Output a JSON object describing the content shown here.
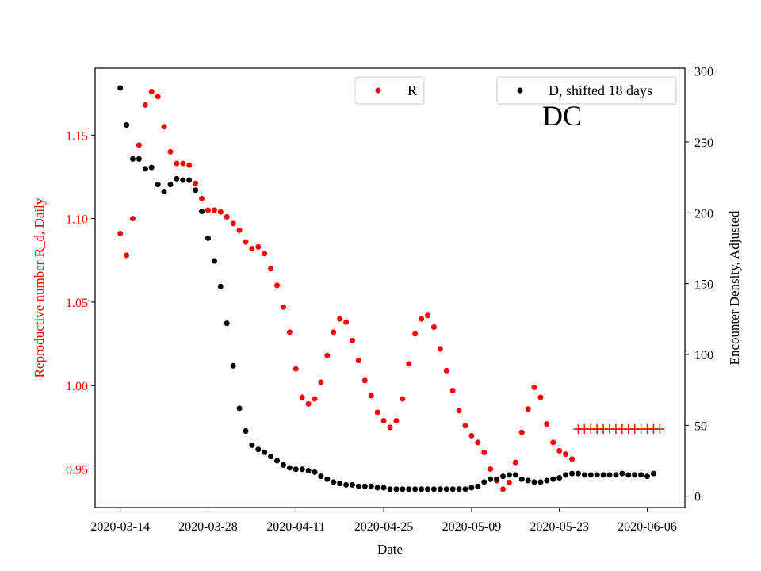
{
  "chart_data": {
    "type": "scatter",
    "annotation": "DC",
    "xlabel": "Date",
    "ylabel_left": "Reproductive number R_d, Daily",
    "ylabel_right": "Encounter Density, Adjusted",
    "x_ticks": [
      "2020-03-14",
      "2020-03-28",
      "2020-04-11",
      "2020-04-25",
      "2020-05-09",
      "2020-05-23",
      "2020-06-06"
    ],
    "y_left_ticks": [
      "0.95",
      "1.00",
      "1.05",
      "1.10",
      "1.15"
    ],
    "y_right_ticks": [
      "0",
      "50",
      "100",
      "150",
      "200",
      "250",
      "300"
    ],
    "x_start": "2020-03-14",
    "x_end": "2020-06-06",
    "xlim": [
      "2020-03-10",
      "2020-06-12"
    ],
    "ylim_left": [
      0.927,
      1.19
    ],
    "ylim_right": [
      -8,
      302
    ],
    "legend_left": {
      "label": "R",
      "color": "#ff0000"
    },
    "legend_right": {
      "label": "D, shifted 18 days",
      "color": "#000000"
    },
    "colors": {
      "r": "#ff0000",
      "d": "#000000",
      "left_axis": "#ff0000"
    },
    "series_r": [
      1.091,
      1.078,
      1.1,
      1.144,
      1.168,
      1.176,
      1.173,
      1.155,
      1.14,
      1.133,
      1.133,
      1.132,
      1.121,
      1.112,
      1.105,
      1.105,
      1.104,
      1.101,
      1.097,
      1.093,
      1.086,
      1.082,
      1.083,
      1.079,
      1.07,
      1.06,
      1.047,
      1.032,
      1.01,
      0.993,
      0.989,
      0.992,
      1.002,
      1.018,
      1.032,
      1.04,
      1.038,
      1.027,
      1.015,
      1.003,
      0.994,
      0.984,
      0.979,
      0.975,
      0.979,
      0.992,
      1.013,
      1.031,
      1.04,
      1.042,
      1.035,
      1.022,
      1.009,
      0.997,
      0.985,
      0.976,
      0.97,
      0.966,
      0.96,
      0.95,
      0.943,
      0.938,
      0.942,
      0.954,
      0.972,
      0.986,
      0.999,
      0.993,
      0.977,
      0.966,
      0.961,
      0.959,
      0.956
    ],
    "series_r_projected": [
      0.974,
      0.974,
      0.974,
      0.974,
      0.974,
      0.974,
      0.974,
      0.974,
      0.974,
      0.974,
      0.974,
      0.974,
      0.974,
      0.974
    ],
    "series_r_projected_start": 73,
    "series_d": [
      288,
      262,
      238,
      238,
      231,
      232,
      220,
      215,
      220,
      224,
      223,
      223,
      216,
      201,
      182,
      166,
      148,
      122,
      92,
      62,
      46,
      36,
      33,
      31,
      28,
      25,
      22,
      20,
      19,
      19,
      18,
      17,
      14,
      12,
      10,
      9,
      8,
      8,
      7,
      7,
      7,
      6,
      6,
      5,
      5,
      5,
      5,
      5,
      5,
      5,
      5,
      5,
      5,
      5,
      5,
      5,
      6,
      7,
      10,
      12,
      12,
      14,
      15,
      15,
      12,
      11,
      10,
      10,
      11,
      12,
      13,
      15,
      16,
      16,
      15,
      15,
      15,
      15,
      15,
      15,
      16,
      15,
      15,
      15,
      14,
      16
    ]
  }
}
